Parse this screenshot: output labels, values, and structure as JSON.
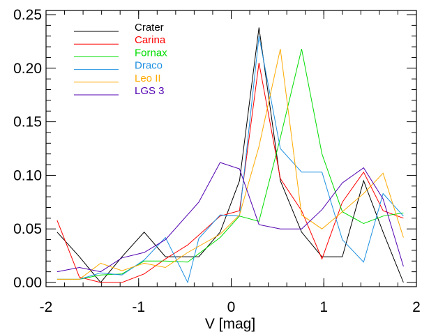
{
  "chart_data": {
    "type": "line",
    "title": "",
    "xlabel": "V [mag]",
    "ylabel": "",
    "xlim": [
      -2,
      2
    ],
    "ylim": [
      0,
      0.25
    ],
    "xticks": [
      -2,
      -1,
      0,
      1,
      2
    ],
    "xtick_labels": [
      "-2",
      "-1",
      "0",
      "1",
      "2"
    ],
    "yticks": [
      0.0,
      0.05,
      0.1,
      0.15,
      0.2,
      0.25
    ],
    "ytick_labels": [
      "0.00",
      "0.05",
      "0.10",
      "0.15",
      "0.20",
      "0.25"
    ],
    "grid": false,
    "legend_position": "top-left",
    "series": [
      {
        "name": "Crater",
        "color": "#000000",
        "x": [
          -1.88,
          -1.64,
          -1.41,
          -1.18,
          -0.94,
          -0.71,
          -0.35,
          -0.12,
          0.09,
          0.3,
          0.53,
          0.76,
          0.98,
          1.2,
          1.43,
          1.64,
          1.86
        ],
        "y": [
          0.047,
          0.024,
          0.0,
          0.024,
          0.047,
          0.024,
          0.024,
          0.047,
          0.095,
          0.238,
          0.095,
          0.047,
          0.024,
          0.024,
          0.095,
          0.047,
          0.0
        ]
      },
      {
        "name": "Carina",
        "color": "#ff0000",
        "x": [
          -1.88,
          -1.64,
          -1.41,
          -1.18,
          -0.94,
          -0.71,
          -0.47,
          -0.12,
          0.09,
          0.3,
          0.53,
          0.76,
          0.98,
          1.2,
          1.43,
          1.64,
          1.86
        ],
        "y": [
          0.058,
          0.005,
          0.0,
          0.0,
          0.008,
          0.022,
          0.035,
          0.062,
          0.067,
          0.205,
          0.097,
          0.067,
          0.022,
          0.075,
          0.103,
          0.067,
          0.06
        ]
      },
      {
        "name": "Fornax",
        "color": "#00dd00",
        "x": [
          -1.88,
          -1.64,
          -1.41,
          -1.18,
          -0.94,
          -0.71,
          -0.47,
          -0.12,
          0.09,
          0.3,
          0.53,
          0.76,
          0.98,
          1.2,
          1.43,
          1.64,
          1.86
        ],
        "y": [
          0.003,
          0.003,
          0.007,
          0.008,
          0.02,
          0.02,
          0.019,
          0.042,
          0.062,
          0.057,
          0.135,
          0.218,
          0.12,
          0.066,
          0.055,
          0.062,
          0.065
        ]
      },
      {
        "name": "Draco",
        "color": "#1e90e0",
        "x": [
          -1.88,
          -1.64,
          -1.41,
          -1.18,
          -0.94,
          -0.71,
          -0.47,
          -0.35,
          -0.12,
          0.09,
          0.3,
          0.53,
          0.76,
          0.98,
          1.2,
          1.43,
          1.64,
          1.86
        ],
        "y": [
          0.003,
          0.003,
          0.009,
          0.007,
          0.021,
          0.042,
          0.0,
          0.041,
          0.063,
          0.062,
          0.23,
          0.125,
          0.103,
          0.103,
          0.04,
          0.019,
          0.083,
          0.062
        ]
      },
      {
        "name": "Leo II",
        "color": "#ffaa00",
        "x": [
          -1.88,
          -1.64,
          -1.41,
          -1.18,
          -0.94,
          -0.71,
          -0.47,
          -0.12,
          0.09,
          0.3,
          0.53,
          0.76,
          0.98,
          1.2,
          1.43,
          1.64,
          1.86
        ],
        "y": [
          0.003,
          0.003,
          0.018,
          0.011,
          0.018,
          0.014,
          0.028,
          0.045,
          0.063,
          0.127,
          0.218,
          0.063,
          0.05,
          0.066,
          0.083,
          0.102,
          0.042
        ]
      },
      {
        "name": "LGS 3",
        "color": "#5000b0",
        "x": [
          -1.88,
          -1.64,
          -1.41,
          -1.18,
          -0.94,
          -0.71,
          -0.35,
          -0.12,
          0.09,
          0.3,
          0.53,
          0.76,
          0.98,
          1.2,
          1.43,
          1.64,
          1.86
        ],
        "y": [
          0.01,
          0.014,
          0.01,
          0.023,
          0.028,
          0.04,
          0.075,
          0.112,
          0.106,
          0.054,
          0.05,
          0.05,
          0.068,
          0.093,
          0.107,
          0.078,
          0.015
        ]
      }
    ]
  }
}
